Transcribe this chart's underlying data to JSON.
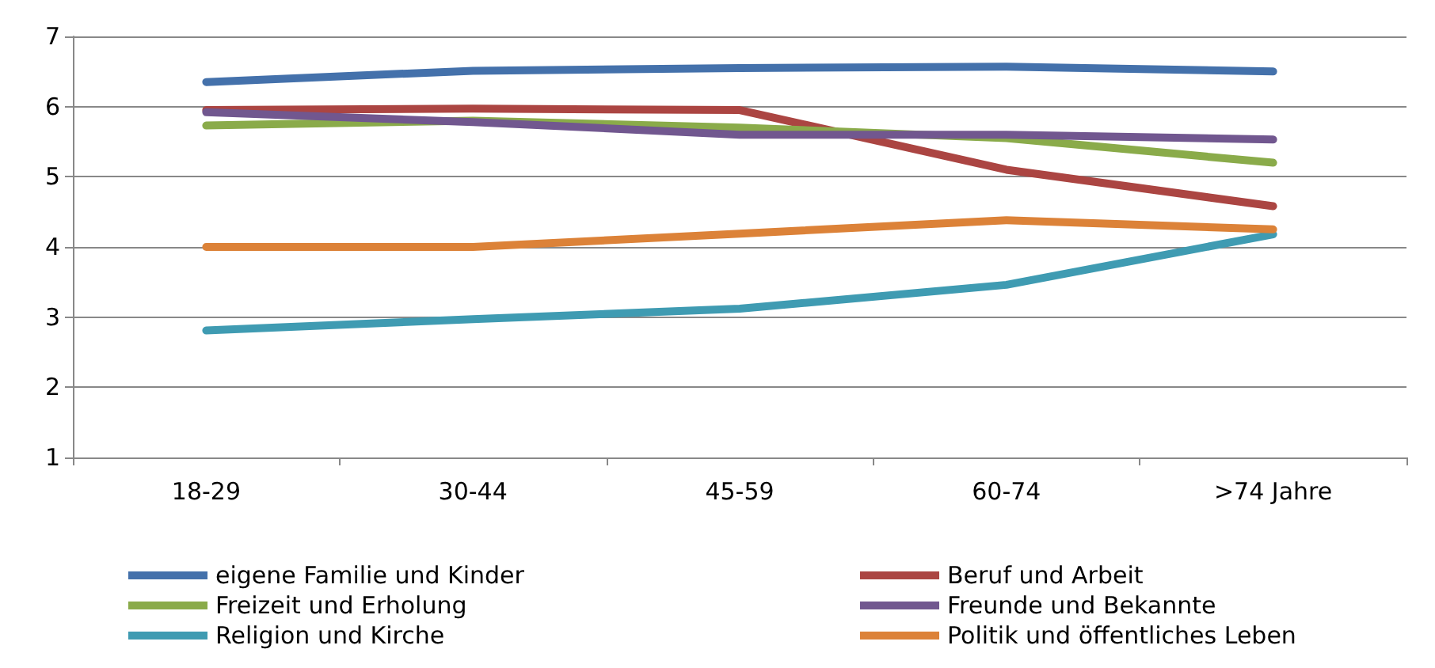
{
  "chart_data": {
    "type": "line",
    "categories": [
      "18-29",
      "30-44",
      "45-59",
      "60-74",
      ">74 Jahre"
    ],
    "series": [
      {
        "name": "eigene Familie und Kinder",
        "color": "#4471ab",
        "values": [
          6.35,
          6.51,
          6.55,
          6.57,
          6.5
        ]
      },
      {
        "name": "Beruf und Arbeit",
        "color": "#ab4542",
        "values": [
          5.95,
          5.97,
          5.95,
          5.1,
          4.58
        ]
      },
      {
        "name": "Freizeit und Erholung",
        "color": "#8aab4a",
        "values": [
          5.73,
          5.8,
          5.7,
          5.55,
          5.2
        ]
      },
      {
        "name": "Freunde und Bekannte",
        "color": "#71578f",
        "values": [
          5.92,
          5.78,
          5.6,
          5.6,
          5.53
        ]
      },
      {
        "name": "Religion und Kirche",
        "color": "#3f9bb2",
        "values": [
          2.81,
          2.97,
          3.12,
          3.46,
          4.18
        ]
      },
      {
        "name": "Politik und öffentliches Leben",
        "color": "#dc8238",
        "values": [
          4.0,
          4.0,
          4.19,
          4.38,
          4.25
        ]
      }
    ],
    "ylim": [
      1,
      7
    ],
    "yticks": [
      1,
      2,
      3,
      4,
      5,
      6,
      7
    ],
    "grid": "y",
    "legend": "bottom",
    "marker": "none",
    "line_style": "solid"
  }
}
